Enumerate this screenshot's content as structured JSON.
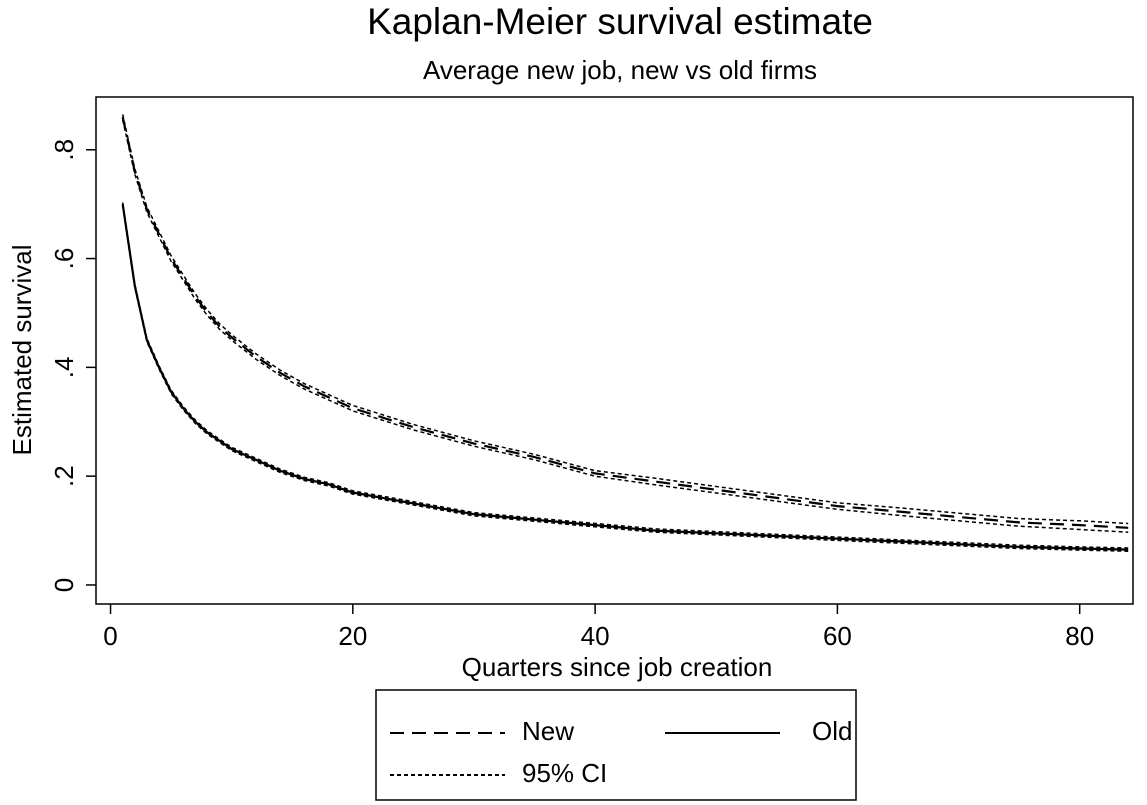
{
  "chart_data": {
    "type": "line",
    "step": false,
    "title": "Kaplan-Meier survival estimate",
    "subtitle": "Average new job, new vs old firms",
    "x_label": "Quarters since job creation",
    "y_label": "Estimated survival",
    "x": [
      1,
      2,
      3,
      4,
      5,
      6,
      7,
      8,
      9,
      10,
      12,
      14,
      16,
      18,
      20,
      25,
      30,
      35,
      40,
      45,
      50,
      55,
      60,
      65,
      70,
      75,
      80,
      84
    ],
    "series": [
      {
        "name": "New",
        "color": "#000000",
        "line_style": "dash",
        "values": [
          0.86,
          0.76,
          0.69,
          0.645,
          0.6,
          0.565,
          0.53,
          0.5,
          0.475,
          0.455,
          0.42,
          0.39,
          0.365,
          0.345,
          0.325,
          0.29,
          0.26,
          0.235,
          0.205,
          0.19,
          0.175,
          0.16,
          0.145,
          0.135,
          0.125,
          0.115,
          0.11,
          0.105
        ],
        "ci_low": [
          0.855,
          0.755,
          0.685,
          0.64,
          0.595,
          0.56,
          0.525,
          0.495,
          0.47,
          0.45,
          0.415,
          0.385,
          0.36,
          0.34,
          0.32,
          0.285,
          0.255,
          0.23,
          0.2,
          0.184,
          0.169,
          0.154,
          0.139,
          0.128,
          0.118,
          0.108,
          0.102,
          0.097
        ],
        "ci_high": [
          0.865,
          0.765,
          0.695,
          0.65,
          0.605,
          0.57,
          0.535,
          0.505,
          0.48,
          0.46,
          0.425,
          0.395,
          0.37,
          0.35,
          0.33,
          0.295,
          0.265,
          0.24,
          0.21,
          0.196,
          0.181,
          0.166,
          0.151,
          0.142,
          0.132,
          0.122,
          0.118,
          0.113
        ]
      },
      {
        "name": "Old",
        "color": "#000000",
        "line_style": "solid",
        "values": [
          0.7,
          0.55,
          0.45,
          0.4,
          0.355,
          0.325,
          0.3,
          0.28,
          0.265,
          0.25,
          0.23,
          0.21,
          0.195,
          0.185,
          0.17,
          0.15,
          0.13,
          0.12,
          0.11,
          0.1,
          0.095,
          0.09,
          0.085,
          0.08,
          0.075,
          0.07,
          0.067,
          0.065
        ],
        "ci_low": [
          0.697,
          0.547,
          0.447,
          0.397,
          0.352,
          0.322,
          0.297,
          0.277,
          0.262,
          0.247,
          0.227,
          0.207,
          0.192,
          0.182,
          0.167,
          0.147,
          0.127,
          0.117,
          0.107,
          0.097,
          0.092,
          0.087,
          0.082,
          0.077,
          0.072,
          0.067,
          0.064,
          0.062
        ],
        "ci_high": [
          0.703,
          0.553,
          0.453,
          0.403,
          0.358,
          0.328,
          0.303,
          0.283,
          0.268,
          0.253,
          0.233,
          0.213,
          0.198,
          0.188,
          0.173,
          0.153,
          0.133,
          0.123,
          0.113,
          0.103,
          0.098,
          0.093,
          0.088,
          0.083,
          0.078,
          0.073,
          0.07,
          0.068
        ]
      }
    ],
    "ci_name": "95% CI",
    "ci_line_style": "dot",
    "xlim": [
      -1.2,
      84.4
    ],
    "xticks": [
      0,
      20,
      40,
      60,
      80
    ],
    "ylim": [
      -0.035,
      0.897
    ],
    "yticks": [
      0,
      {
        "value": 0.2,
        "label": ".2"
      },
      {
        "value": 0.4,
        "label": ".4"
      },
      {
        "value": 0.6,
        "label": ".6"
      },
      {
        "value": 0.8,
        "label": ".8"
      }
    ],
    "grid": false
  }
}
